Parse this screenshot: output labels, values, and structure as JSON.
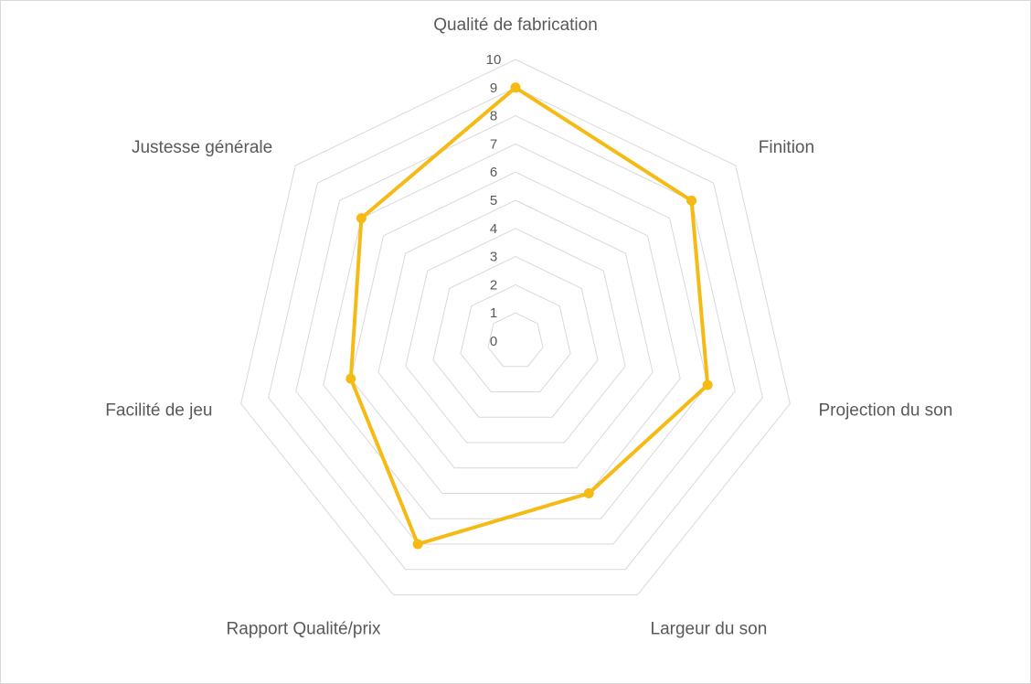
{
  "chart_data": {
    "type": "radar",
    "title": "",
    "categories": [
      "Qualité de fabrication",
      "Finition",
      "Projection du son",
      "Largeur du son",
      "Rapport Qualité/prix",
      "Facilité de jeu",
      "Justesse générale"
    ],
    "series": [
      {
        "values": [
          9,
          8,
          7,
          6,
          8,
          6,
          7
        ],
        "color": "#F5BA14"
      }
    ],
    "rlim": [
      0,
      10
    ],
    "ticks": [
      0,
      1,
      2,
      3,
      4,
      5,
      6,
      7,
      8,
      9,
      10
    ],
    "grid": true,
    "legend": "none",
    "colors": {
      "grid": "#D9D9D9",
      "text": "#595959",
      "border": "#D9D9D9"
    }
  }
}
